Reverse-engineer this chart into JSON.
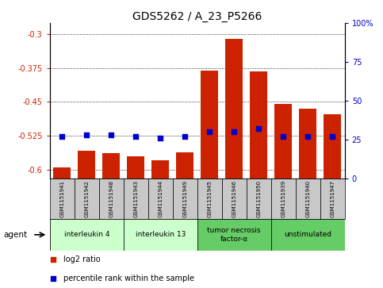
{
  "title": "GDS5262 / A_23_P5266",
  "samples": [
    "GSM1151941",
    "GSM1151942",
    "GSM1151948",
    "GSM1151943",
    "GSM1151944",
    "GSM1151949",
    "GSM1151945",
    "GSM1151946",
    "GSM1151950",
    "GSM1151939",
    "GSM1151940",
    "GSM1151947"
  ],
  "log2_ratio": [
    -0.595,
    -0.558,
    -0.563,
    -0.57,
    -0.58,
    -0.562,
    -0.38,
    -0.31,
    -0.383,
    -0.455,
    -0.465,
    -0.478
  ],
  "percentile_rank": [
    27,
    28,
    28,
    27,
    26,
    27,
    30,
    30,
    32,
    27,
    27,
    27
  ],
  "agents": [
    {
      "label": "interleukin 4",
      "start": 0,
      "end": 2,
      "color": "#ccffcc"
    },
    {
      "label": "interleukin 13",
      "start": 3,
      "end": 5,
      "color": "#ccffcc"
    },
    {
      "label": "tumor necrosis\nfactor-α",
      "start": 6,
      "end": 8,
      "color": "#66cc66"
    },
    {
      "label": "unstimulated",
      "start": 9,
      "end": 11,
      "color": "#66cc66"
    }
  ],
  "ylim_left": [
    -0.62,
    -0.275
  ],
  "yticks_left": [
    -0.6,
    -0.525,
    -0.45,
    -0.375,
    -0.3
  ],
  "yticks_right": [
    0,
    25,
    50,
    75,
    100
  ],
  "bar_color": "#cc2200",
  "dot_color": "#0000cc",
  "sample_box_color": "#c8c8c8",
  "grid_color": "#000000",
  "title_fontsize": 10,
  "tick_fontsize": 7,
  "label_fontsize": 6,
  "agent_fontsize": 6.5,
  "legend_fontsize": 7
}
